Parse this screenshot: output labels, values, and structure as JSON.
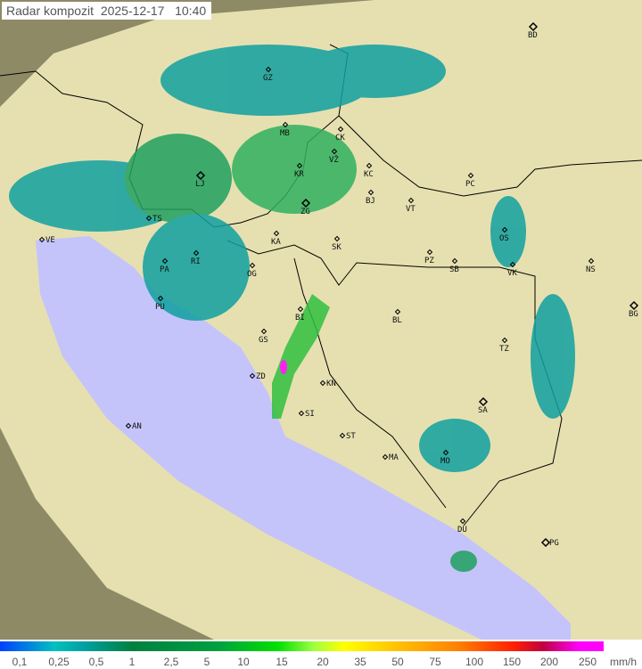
{
  "title": "Radar kompozit  2025-12-17   10:40",
  "legend": {
    "unit": "mm/h",
    "ticks": [
      "0,1",
      "0,25",
      "0,5",
      "1",
      "2,5",
      "5",
      "10",
      "15",
      "20",
      "35",
      "50",
      "75",
      "100",
      "150",
      "200",
      "250"
    ]
  },
  "colors": {
    "sea": "#c4c4fa",
    "land": "#e6e0b0",
    "outside": "#8e8a66",
    "rain_light": "#10a0a0",
    "rain_mid": "#20c040",
    "rain_heavy": "#ff00ff"
  },
  "cities": [
    {
      "code": "BD",
      "cap": true
    },
    {
      "code": "GZ"
    },
    {
      "code": "MB"
    },
    {
      "code": "CK"
    },
    {
      "code": "VŽ"
    },
    {
      "code": "KR"
    },
    {
      "code": "KC"
    },
    {
      "code": "PC"
    },
    {
      "code": "LJ",
      "cap": true
    },
    {
      "code": "ZG",
      "cap": true
    },
    {
      "code": "BJ"
    },
    {
      "code": "VT"
    },
    {
      "code": "TS"
    },
    {
      "code": "VE"
    },
    {
      "code": "RI"
    },
    {
      "code": "KA"
    },
    {
      "code": "SK"
    },
    {
      "code": "OS"
    },
    {
      "code": "PA"
    },
    {
      "code": "OG"
    },
    {
      "code": "PZ"
    },
    {
      "code": "SB"
    },
    {
      "code": "VK"
    },
    {
      "code": "NS"
    },
    {
      "code": "PU"
    },
    {
      "code": "BG",
      "cap": true
    },
    {
      "code": "BI"
    },
    {
      "code": "BL"
    },
    {
      "code": "GS"
    },
    {
      "code": "TZ"
    },
    {
      "code": "ZD"
    },
    {
      "code": "KN"
    },
    {
      "code": "SI"
    },
    {
      "code": "SA",
      "cap": true
    },
    {
      "code": "AN"
    },
    {
      "code": "ST"
    },
    {
      "code": "MA"
    },
    {
      "code": "MO"
    },
    {
      "code": "DU"
    },
    {
      "code": "PG",
      "cap": true
    }
  ]
}
